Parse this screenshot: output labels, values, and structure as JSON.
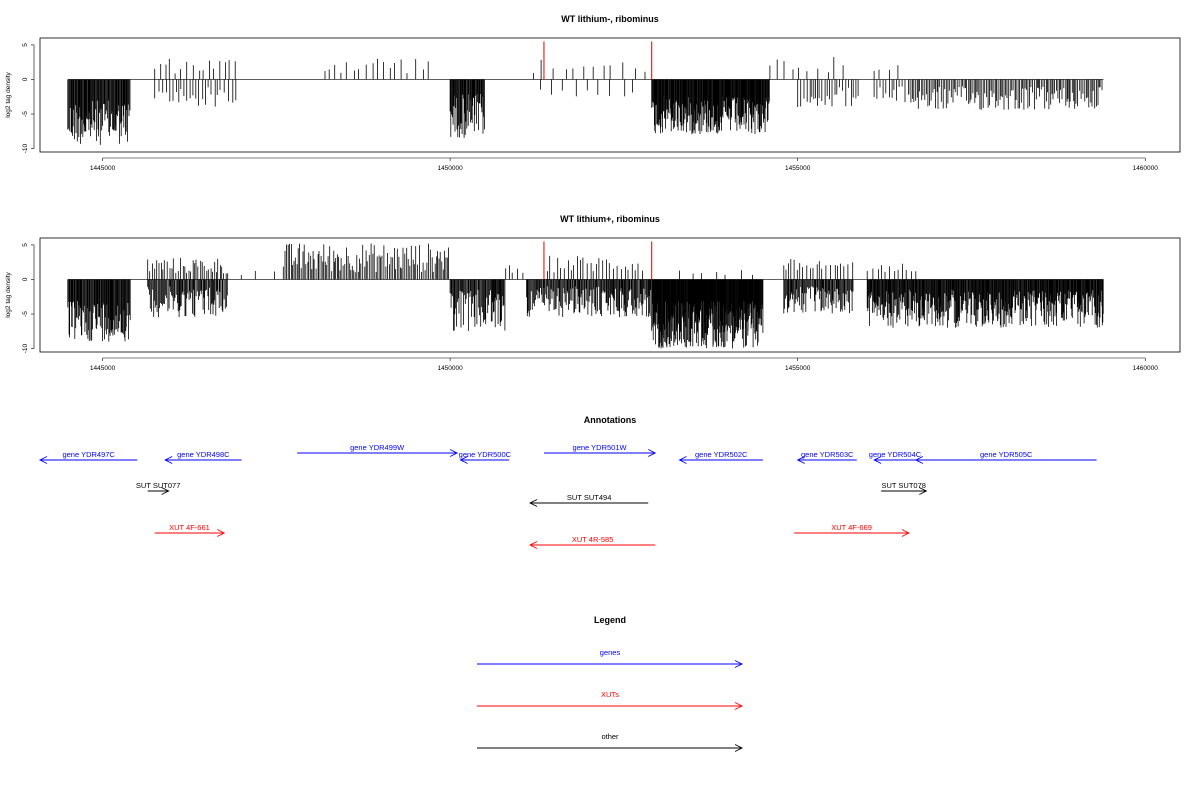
{
  "chart_data": [
    {
      "type": "bar",
      "title": "WT lithium-, ribominus",
      "ylabel": "log2 tag density",
      "xlim": [
        1444100,
        1460500
      ],
      "ylim": [
        -10.5,
        6
      ],
      "xticks": [
        1445000,
        1450000,
        1455000,
        1460000
      ],
      "yticks": [
        5,
        0,
        -5,
        -10
      ],
      "segments": [
        {
          "start": 1444500,
          "end": 1445400,
          "min": 3,
          "max": 9.5,
          "dir": -1,
          "step": 10
        },
        {
          "start": 1445750,
          "end": 1446950,
          "min": 1,
          "max": 4,
          "dir": -1,
          "step": 45
        },
        {
          "start": 1445750,
          "end": 1446950,
          "min": 0.8,
          "max": 3.2,
          "dir": 1,
          "step": 70
        },
        {
          "start": 1448200,
          "end": 1449700,
          "min": 0.8,
          "max": 3.5,
          "dir": 1,
          "step": 90
        },
        {
          "start": 1450000,
          "end": 1450500,
          "min": 2,
          "max": 8.5,
          "dir": -1,
          "step": 10
        },
        {
          "start": 1451200,
          "end": 1452900,
          "min": 0.8,
          "max": 3,
          "dir": 1,
          "step": 140
        },
        {
          "start": 1451300,
          "end": 1452700,
          "min": 1,
          "max": 2.5,
          "dir": -1,
          "step": 160
        },
        {
          "start": 1452900,
          "end": 1454600,
          "min": 2.5,
          "max": 8,
          "dir": -1,
          "step": 8
        },
        {
          "start": 1454600,
          "end": 1455700,
          "min": 1,
          "max": 3.5,
          "dir": 1,
          "step": 120
        },
        {
          "start": 1455000,
          "end": 1455900,
          "min": 1,
          "max": 4,
          "dir": -1,
          "step": 35
        },
        {
          "start": 1456100,
          "end": 1456500,
          "min": 1,
          "max": 3,
          "dir": 1,
          "step": 110
        },
        {
          "start": 1456100,
          "end": 1456600,
          "min": 1,
          "max": 3.5,
          "dir": -1,
          "step": 40
        },
        {
          "start": 1456600,
          "end": 1459400,
          "min": 1,
          "max": 4.5,
          "dir": -1,
          "step": 22
        }
      ],
      "markers": [
        1451350,
        1452900
      ],
      "marker_height": 5.5,
      "marker_color": "#e00000"
    },
    {
      "type": "bar",
      "title": "WT lithium+, ribominus",
      "ylabel": "log2 tag density",
      "xlim": [
        1444100,
        1460500
      ],
      "ylim": [
        -10.5,
        6
      ],
      "xticks": [
        1445000,
        1450000,
        1455000,
        1460000
      ],
      "yticks": [
        5,
        0,
        -5,
        -10
      ],
      "segments": [
        {
          "start": 1444500,
          "end": 1445400,
          "min": 3,
          "max": 9,
          "dir": -1,
          "step": 10
        },
        {
          "start": 1445650,
          "end": 1446800,
          "min": 1,
          "max": 5.5,
          "dir": -1,
          "step": 14
        },
        {
          "start": 1445650,
          "end": 1446800,
          "min": 0.8,
          "max": 3.2,
          "dir": 1,
          "step": 30
        },
        {
          "start": 1446800,
          "end": 1447600,
          "min": 0.5,
          "max": 1.5,
          "dir": 1,
          "step": 220
        },
        {
          "start": 1447600,
          "end": 1450000,
          "min": 1,
          "max": 5.3,
          "dir": 1,
          "step": 22
        },
        {
          "start": 1450000,
          "end": 1450800,
          "min": 1.5,
          "max": 7.5,
          "dir": -1,
          "step": 12
        },
        {
          "start": 1450800,
          "end": 1451100,
          "min": 0.8,
          "max": 2.5,
          "dir": 1,
          "step": 60
        },
        {
          "start": 1451100,
          "end": 1452900,
          "min": 1,
          "max": 5.5,
          "dir": -1,
          "step": 12
        },
        {
          "start": 1451400,
          "end": 1452800,
          "min": 1,
          "max": 3.5,
          "dir": 1,
          "step": 45
        },
        {
          "start": 1452900,
          "end": 1454500,
          "min": 3,
          "max": 10,
          "dir": -1,
          "step": 6
        },
        {
          "start": 1453300,
          "end": 1454500,
          "min": 0.5,
          "max": 1.5,
          "dir": 1,
          "step": 180
        },
        {
          "start": 1454800,
          "end": 1455800,
          "min": 1,
          "max": 3,
          "dir": 1,
          "step": 50
        },
        {
          "start": 1454800,
          "end": 1455800,
          "min": 1,
          "max": 5,
          "dir": -1,
          "step": 12
        },
        {
          "start": 1456000,
          "end": 1456700,
          "min": 1,
          "max": 2.5,
          "dir": 1,
          "step": 60
        },
        {
          "start": 1456000,
          "end": 1459400,
          "min": 1.5,
          "max": 7,
          "dir": -1,
          "step": 9
        }
      ],
      "markers": [
        1451350,
        1452900
      ],
      "marker_height": 5.5,
      "marker_color": "#e00000"
    }
  ],
  "annotations": {
    "title": "Annotations",
    "features": [
      {
        "label": "gene YDR497C",
        "type": "gene",
        "start": 1444100,
        "end": 1445500,
        "strand": "-",
        "row": 0
      },
      {
        "label": "gene YDR498C",
        "type": "gene",
        "start": 1445900,
        "end": 1447000,
        "strand": "-",
        "row": 0
      },
      {
        "label": "gene YDR499W",
        "type": "gene",
        "start": 1447800,
        "end": 1450100,
        "strand": "+",
        "row": 0
      },
      {
        "label": "gene YDR500C",
        "type": "gene",
        "start": 1450150,
        "end": 1450850,
        "strand": "-",
        "row": 0
      },
      {
        "label": "gene YDR501W",
        "type": "gene",
        "start": 1451350,
        "end": 1452950,
        "strand": "+",
        "row": 0
      },
      {
        "label": "gene YDR502C",
        "type": "gene",
        "start": 1453300,
        "end": 1454500,
        "strand": "-",
        "row": 0
      },
      {
        "label": "gene YDR503C",
        "type": "gene",
        "start": 1455000,
        "end": 1455850,
        "strand": "-",
        "row": 0
      },
      {
        "label": "gene YDR504C",
        "type": "gene",
        "start": 1456100,
        "end": 1456700,
        "strand": "-",
        "row": 0
      },
      {
        "label": "gene YDR505C",
        "type": "gene",
        "start": 1456700,
        "end": 1459300,
        "strand": "-",
        "row": 0
      },
      {
        "label": "SUT SUT077",
        "type": "other",
        "start": 1445650,
        "end": 1445950,
        "strand": "+",
        "row": 1
      },
      {
        "label": "SUT SUT078",
        "type": "other",
        "start": 1456200,
        "end": 1456850,
        "strand": "+",
        "row": 1
      },
      {
        "label": "SUT SUT494",
        "type": "other",
        "start": 1451150,
        "end": 1452850,
        "strand": "-",
        "row": 2
      },
      {
        "label": "XUT 4F-661",
        "type": "xut",
        "start": 1445750,
        "end": 1446750,
        "strand": "+",
        "row": 3
      },
      {
        "label": "XUT 4R-585",
        "type": "xut",
        "start": 1451150,
        "end": 1452950,
        "strand": "-",
        "row": 4
      },
      {
        "label": "XUT 4F-669",
        "type": "xut",
        "start": 1454950,
        "end": 1456600,
        "strand": "+",
        "row": 3
      }
    ]
  },
  "legend": {
    "title": "Legend",
    "items": [
      {
        "label": "genes",
        "color": "#0000ff"
      },
      {
        "label": "XUTs",
        "color": "#ff0000"
      },
      {
        "label": "other",
        "color": "#000000"
      }
    ]
  },
  "colors": {
    "gene": "#0000ff",
    "xut": "#ff0000",
    "other": "#000000"
  }
}
